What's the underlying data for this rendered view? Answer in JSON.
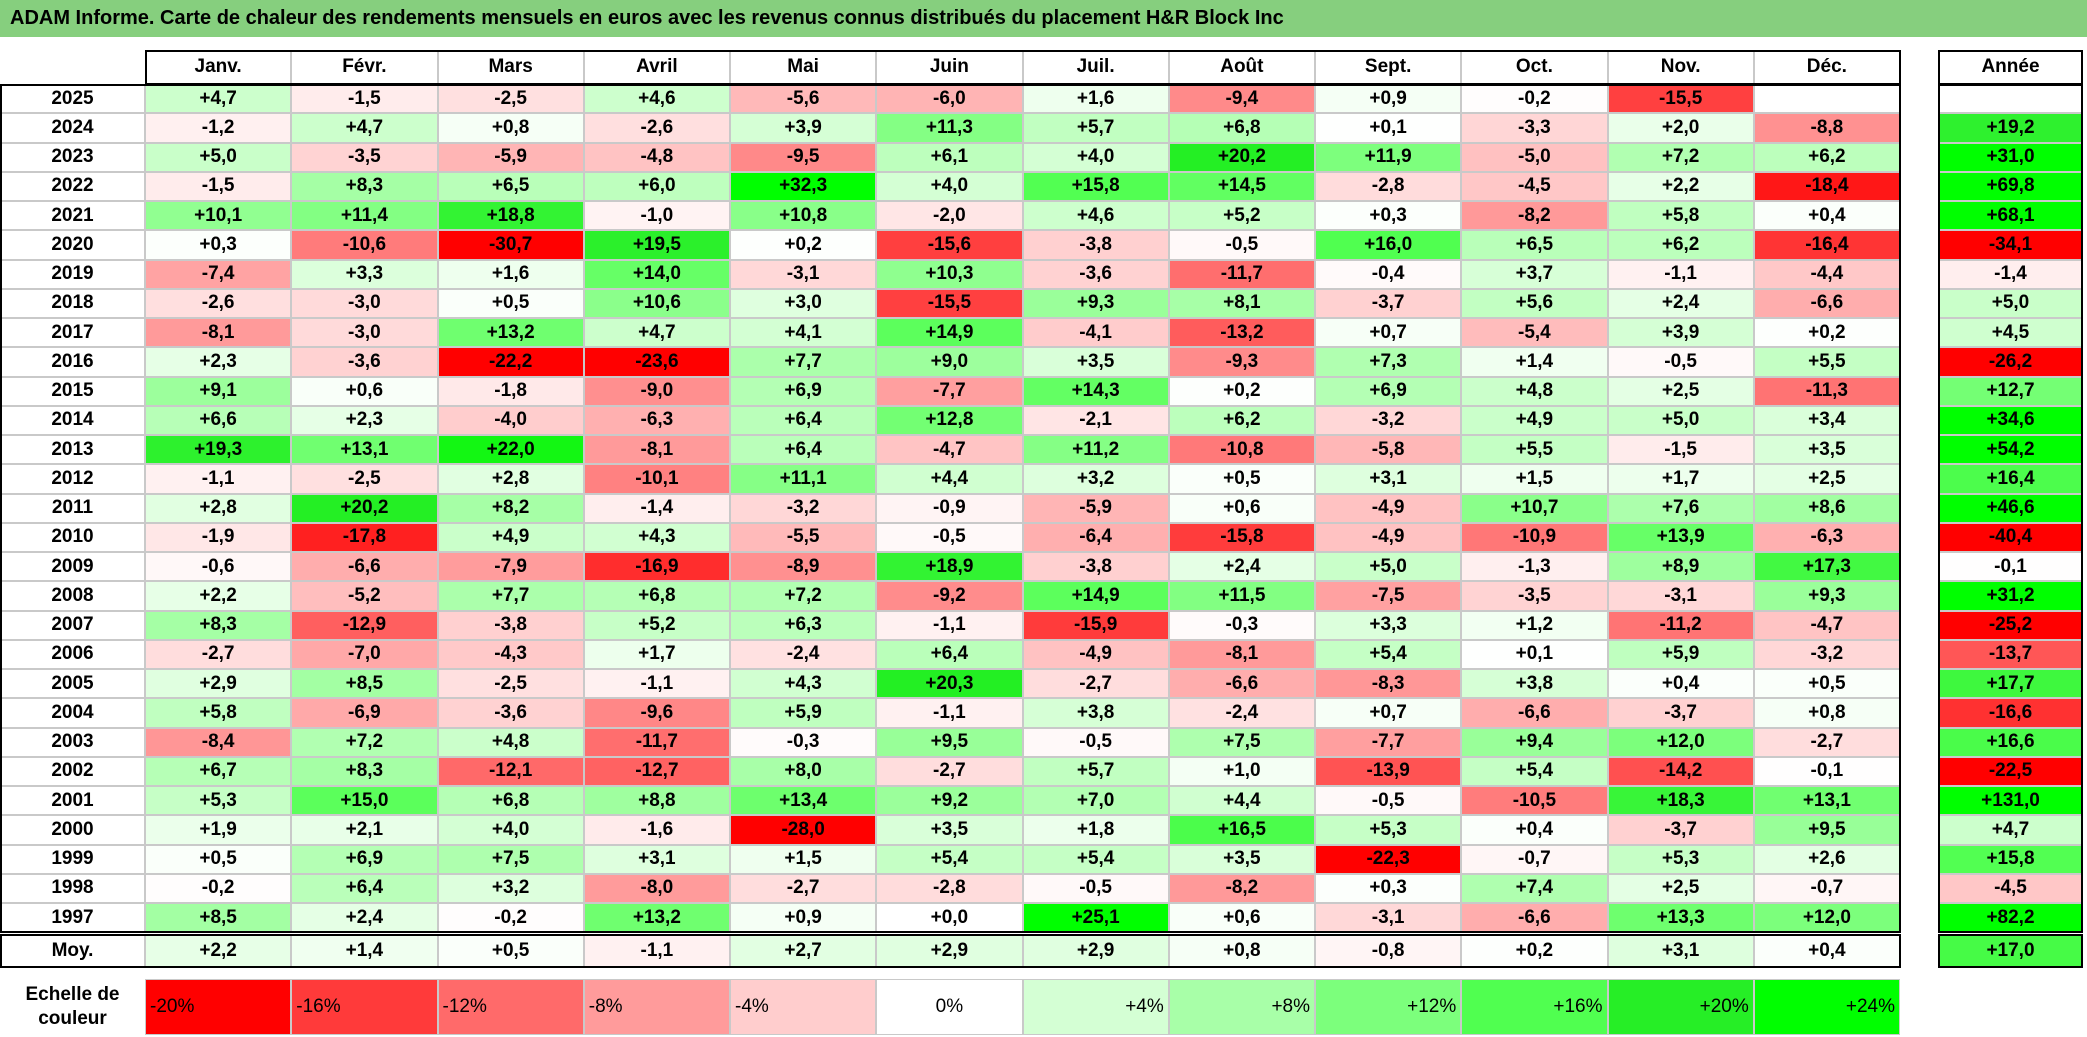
{
  "chart_data": {
    "type": "heatmap",
    "title": "ADAM Informe. Carte de chaleur des rendements mensuels en euros avec les revenus connus distribués du placement H&R Block Inc",
    "columns": [
      "Janv.",
      "Févr.",
      "Mars",
      "Avril",
      "Mai",
      "Juin",
      "Juil.",
      "Août",
      "Sept.",
      "Oct.",
      "Nov.",
      "Déc."
    ],
    "year_column": "Année",
    "rows": [
      "2025",
      "2024",
      "2023",
      "2022",
      "2021",
      "2020",
      "2019",
      "2018",
      "2017",
      "2016",
      "2015",
      "2014",
      "2013",
      "2012",
      "2011",
      "2010",
      "2009",
      "2008",
      "2007",
      "2006",
      "2005",
      "2004",
      "2003",
      "2002",
      "2001",
      "2000",
      "1999",
      "1998",
      "1997"
    ],
    "values": [
      [
        4.7,
        -1.5,
        -2.5,
        4.6,
        -5.6,
        -6.0,
        1.6,
        -9.4,
        0.9,
        -0.2,
        -15.5,
        null
      ],
      [
        -1.2,
        4.7,
        0.8,
        -2.6,
        3.9,
        11.3,
        5.7,
        6.8,
        0.1,
        -3.3,
        2.0,
        -8.8
      ],
      [
        5.0,
        -3.5,
        -5.9,
        -4.8,
        -9.5,
        6.1,
        4.0,
        20.2,
        11.9,
        -5.0,
        7.2,
        6.2
      ],
      [
        -1.5,
        8.3,
        6.5,
        6.0,
        32.3,
        4.0,
        15.8,
        14.5,
        -2.8,
        -4.5,
        2.2,
        -18.4
      ],
      [
        10.1,
        11.4,
        18.8,
        -1.0,
        10.8,
        -2.0,
        4.6,
        5.2,
        0.3,
        -8.2,
        5.8,
        0.4
      ],
      [
        0.3,
        -10.6,
        -30.7,
        19.5,
        0.2,
        -15.6,
        -3.8,
        -0.5,
        16.0,
        6.5,
        6.2,
        -16.4
      ],
      [
        -7.4,
        3.3,
        1.6,
        14.0,
        -3.1,
        10.3,
        -3.6,
        -11.7,
        -0.4,
        3.7,
        -1.1,
        -4.4
      ],
      [
        -2.6,
        -3.0,
        0.5,
        10.6,
        3.0,
        -15.5,
        9.3,
        8.1,
        -3.7,
        5.6,
        2.4,
        -6.6
      ],
      [
        -8.1,
        -3.0,
        13.2,
        4.7,
        4.1,
        14.9,
        -4.1,
        -13.2,
        0.7,
        -5.4,
        3.9,
        0.2
      ],
      [
        2.3,
        -3.6,
        -22.2,
        -23.6,
        7.7,
        9.0,
        3.5,
        -9.3,
        7.3,
        1.4,
        -0.5,
        5.5
      ],
      [
        9.1,
        0.6,
        -1.8,
        -9.0,
        6.9,
        -7.7,
        14.3,
        0.2,
        6.9,
        4.8,
        2.5,
        -11.3
      ],
      [
        6.6,
        2.3,
        -4.0,
        -6.3,
        6.4,
        12.8,
        -2.1,
        6.2,
        -3.2,
        4.9,
        5.0,
        3.4
      ],
      [
        19.3,
        13.1,
        22.0,
        -8.1,
        6.4,
        -4.7,
        11.2,
        -10.8,
        -5.8,
        5.5,
        -1.5,
        3.5
      ],
      [
        -1.1,
        -2.5,
        2.8,
        -10.1,
        11.1,
        4.4,
        3.2,
        0.5,
        3.1,
        1.5,
        1.7,
        2.5
      ],
      [
        2.8,
        20.2,
        8.2,
        -1.4,
        -3.2,
        -0.9,
        -5.9,
        0.6,
        -4.9,
        10.7,
        7.6,
        8.6
      ],
      [
        -1.9,
        -17.8,
        4.9,
        4.3,
        -5.5,
        -0.5,
        -6.4,
        -15.8,
        -4.9,
        -10.9,
        13.9,
        -6.3
      ],
      [
        -0.6,
        -6.6,
        -7.9,
        -16.9,
        -8.9,
        18.9,
        -3.8,
        2.4,
        5.0,
        -1.3,
        8.9,
        17.3
      ],
      [
        2.2,
        -5.2,
        7.7,
        6.8,
        7.2,
        -9.2,
        14.9,
        11.5,
        -7.5,
        -3.5,
        -3.1,
        9.3
      ],
      [
        8.3,
        -12.9,
        -3.8,
        5.2,
        6.3,
        -1.1,
        -15.9,
        -0.3,
        3.3,
        1.2,
        -11.2,
        -4.7
      ],
      [
        -2.7,
        -7.0,
        -4.3,
        1.7,
        -2.4,
        6.4,
        -4.9,
        -8.1,
        5.4,
        0.1,
        5.9,
        -3.2
      ],
      [
        2.9,
        8.5,
        -2.5,
        -1.1,
        4.3,
        20.3,
        -2.7,
        -6.6,
        -8.3,
        3.8,
        0.4,
        0.5
      ],
      [
        5.8,
        -6.9,
        -3.6,
        -9.6,
        5.9,
        -1.1,
        3.8,
        -2.4,
        0.7,
        -6.6,
        -3.7,
        0.8
      ],
      [
        -8.4,
        7.2,
        4.8,
        -11.7,
        -0.3,
        9.5,
        -0.5,
        7.5,
        -7.7,
        9.4,
        12.0,
        -2.7
      ],
      [
        6.7,
        8.3,
        -12.1,
        -12.7,
        8.0,
        -2.7,
        5.7,
        1.0,
        -13.9,
        5.4,
        -14.2,
        -0.1
      ],
      [
        5.3,
        15.0,
        6.8,
        8.8,
        13.4,
        9.2,
        7.0,
        4.4,
        -0.5,
        -10.5,
        18.3,
        13.1
      ],
      [
        1.9,
        2.1,
        4.0,
        -1.6,
        -28.0,
        3.5,
        1.8,
        16.5,
        5.3,
        0.4,
        -3.7,
        9.5
      ],
      [
        0.5,
        6.9,
        7.5,
        3.1,
        1.5,
        5.4,
        5.4,
        3.5,
        -22.3,
        -0.7,
        5.3,
        2.6
      ],
      [
        -0.2,
        6.4,
        3.2,
        -8.0,
        -2.7,
        -2.8,
        -0.5,
        -8.2,
        0.3,
        7.4,
        2.5,
        -0.7
      ],
      [
        8.5,
        2.4,
        -0.2,
        13.2,
        0.9,
        0.0,
        25.1,
        0.6,
        -3.1,
        -6.6,
        13.3,
        12.0
      ]
    ],
    "value_labels": [
      [
        "+4,7",
        "-1,5",
        "-2,5",
        "+4,6",
        "-5,6",
        "-6,0",
        "+1,6",
        "-9,4",
        "+0,9",
        "-0,2",
        "-15,5",
        null
      ],
      [
        "-1,2",
        "+4,7",
        "+0,8",
        "-2,6",
        "+3,9",
        "+11,3",
        "+5,7",
        "+6,8",
        "+0,1",
        "-3,3",
        "+2,0",
        "-8,8"
      ],
      [
        "+5,0",
        "-3,5",
        "-5,9",
        "-4,8",
        "-9,5",
        "+6,1",
        "+4,0",
        "+20,2",
        "+11,9",
        "-5,0",
        "+7,2",
        "+6,2"
      ],
      [
        "-1,5",
        "+8,3",
        "+6,5",
        "+6,0",
        "+32,3",
        "+4,0",
        "+15,8",
        "+14,5",
        "-2,8",
        "-4,5",
        "+2,2",
        "-18,4"
      ],
      [
        "+10,1",
        "+11,4",
        "+18,8",
        "-1,0",
        "+10,8",
        "-2,0",
        "+4,6",
        "+5,2",
        "+0,3",
        "-8,2",
        "+5,8",
        "+0,4"
      ],
      [
        "+0,3",
        "-10,6",
        "-30,7",
        "+19,5",
        "+0,2",
        "-15,6",
        "-3,8",
        "-0,5",
        "+16,0",
        "+6,5",
        "+6,2",
        "-16,4"
      ],
      [
        "-7,4",
        "+3,3",
        "+1,6",
        "+14,0",
        "-3,1",
        "+10,3",
        "-3,6",
        "-11,7",
        "-0,4",
        "+3,7",
        "-1,1",
        "-4,4"
      ],
      [
        "-2,6",
        "-3,0",
        "+0,5",
        "+10,6",
        "+3,0",
        "-15,5",
        "+9,3",
        "+8,1",
        "-3,7",
        "+5,6",
        "+2,4",
        "-6,6"
      ],
      [
        "-8,1",
        "-3,0",
        "+13,2",
        "+4,7",
        "+4,1",
        "+14,9",
        "-4,1",
        "-13,2",
        "+0,7",
        "-5,4",
        "+3,9",
        "+0,2"
      ],
      [
        "+2,3",
        "-3,6",
        "-22,2",
        "-23,6",
        "+7,7",
        "+9,0",
        "+3,5",
        "-9,3",
        "+7,3",
        "+1,4",
        "-0,5",
        "+5,5"
      ],
      [
        "+9,1",
        "+0,6",
        "-1,8",
        "-9,0",
        "+6,9",
        "-7,7",
        "+14,3",
        "+0,2",
        "+6,9",
        "+4,8",
        "+2,5",
        "-11,3"
      ],
      [
        "+6,6",
        "+2,3",
        "-4,0",
        "-6,3",
        "+6,4",
        "+12,8",
        "-2,1",
        "+6,2",
        "-3,2",
        "+4,9",
        "+5,0",
        "+3,4"
      ],
      [
        "+19,3",
        "+13,1",
        "+22,0",
        "-8,1",
        "+6,4",
        "-4,7",
        "+11,2",
        "-10,8",
        "-5,8",
        "+5,5",
        "-1,5",
        "+3,5"
      ],
      [
        "-1,1",
        "-2,5",
        "+2,8",
        "-10,1",
        "+11,1",
        "+4,4",
        "+3,2",
        "+0,5",
        "+3,1",
        "+1,5",
        "+1,7",
        "+2,5"
      ],
      [
        "+2,8",
        "+20,2",
        "+8,2",
        "-1,4",
        "-3,2",
        "-0,9",
        "-5,9",
        "+0,6",
        "-4,9",
        "+10,7",
        "+7,6",
        "+8,6"
      ],
      [
        "-1,9",
        "-17,8",
        "+4,9",
        "+4,3",
        "-5,5",
        "-0,5",
        "-6,4",
        "-15,8",
        "-4,9",
        "-10,9",
        "+13,9",
        "-6,3"
      ],
      [
        "-0,6",
        "-6,6",
        "-7,9",
        "-16,9",
        "-8,9",
        "+18,9",
        "-3,8",
        "+2,4",
        "+5,0",
        "-1,3",
        "+8,9",
        "+17,3"
      ],
      [
        "+2,2",
        "-5,2",
        "+7,7",
        "+6,8",
        "+7,2",
        "-9,2",
        "+14,9",
        "+11,5",
        "-7,5",
        "-3,5",
        "-3,1",
        "+9,3"
      ],
      [
        "+8,3",
        "-12,9",
        "-3,8",
        "+5,2",
        "+6,3",
        "-1,1",
        "-15,9",
        "-0,3",
        "+3,3",
        "+1,2",
        "-11,2",
        "-4,7"
      ],
      [
        "-2,7",
        "-7,0",
        "-4,3",
        "+1,7",
        "-2,4",
        "+6,4",
        "-4,9",
        "-8,1",
        "+5,4",
        "+0,1",
        "+5,9",
        "-3,2"
      ],
      [
        "+2,9",
        "+8,5",
        "-2,5",
        "-1,1",
        "+4,3",
        "+20,3",
        "-2,7",
        "-6,6",
        "-8,3",
        "+3,8",
        "+0,4",
        "+0,5"
      ],
      [
        "+5,8",
        "-6,9",
        "-3,6",
        "-9,6",
        "+5,9",
        "-1,1",
        "+3,8",
        "-2,4",
        "+0,7",
        "-6,6",
        "-3,7",
        "+0,8"
      ],
      [
        "-8,4",
        "+7,2",
        "+4,8",
        "-11,7",
        "-0,3",
        "+9,5",
        "-0,5",
        "+7,5",
        "-7,7",
        "+9,4",
        "+12,0",
        "-2,7"
      ],
      [
        "+6,7",
        "+8,3",
        "-12,1",
        "-12,7",
        "+8,0",
        "-2,7",
        "+5,7",
        "+1,0",
        "-13,9",
        "+5,4",
        "-14,2",
        "-0,1"
      ],
      [
        "+5,3",
        "+15,0",
        "+6,8",
        "+8,8",
        "+13,4",
        "+9,2",
        "+7,0",
        "+4,4",
        "-0,5",
        "-10,5",
        "+18,3",
        "+13,1"
      ],
      [
        "+1,9",
        "+2,1",
        "+4,0",
        "-1,6",
        "-28,0",
        "+3,5",
        "+1,8",
        "+16,5",
        "+5,3",
        "+0,4",
        "-3,7",
        "+9,5"
      ],
      [
        "+0,5",
        "+6,9",
        "+7,5",
        "+3,1",
        "+1,5",
        "+5,4",
        "+5,4",
        "+3,5",
        "-22,3",
        "-0,7",
        "+5,3",
        "+2,6"
      ],
      [
        "-0,2",
        "+6,4",
        "+3,2",
        "-8,0",
        "-2,7",
        "-2,8",
        "-0,5",
        "-8,2",
        "+0,3",
        "+7,4",
        "+2,5",
        "-0,7"
      ],
      [
        "+8,5",
        "+2,4",
        "-0,2",
        "+13,2",
        "+0,9",
        "+0,0",
        "+25,1",
        "+0,6",
        "-3,1",
        "-6,6",
        "+13,3",
        "+12,0"
      ]
    ],
    "year_values": [
      null,
      19.2,
      31.0,
      69.8,
      68.1,
      -34.1,
      -1.4,
      5.0,
      4.5,
      -26.2,
      12.7,
      34.6,
      54.2,
      16.4,
      46.6,
      -40.4,
      -0.1,
      31.2,
      -25.2,
      -13.7,
      17.7,
      -16.6,
      16.6,
      -22.5,
      131.0,
      4.7,
      15.8,
      -4.5,
      82.2
    ],
    "year_labels": [
      null,
      "+19,2",
      "+31,0",
      "+69,8",
      "+68,1",
      "-34,1",
      "-1,4",
      "+5,0",
      "+4,5",
      "-26,2",
      "+12,7",
      "+34,6",
      "+54,2",
      "+16,4",
      "+46,6",
      "-40,4",
      "-0,1",
      "+31,2",
      "-25,2",
      "-13,7",
      "+17,7",
      "-16,6",
      "+16,6",
      "-22,5",
      "+131,0",
      "+4,7",
      "+15,8",
      "-4,5",
      "+82,2"
    ],
    "average_label": "Moy.",
    "average_values": [
      2.2,
      1.4,
      0.5,
      -1.1,
      2.7,
      2.9,
      2.9,
      0.8,
      -0.8,
      0.2,
      3.1,
      0.4
    ],
    "average_labels": [
      "+2,2",
      "+1,4",
      "+0,5",
      "-1,1",
      "+2,7",
      "+2,9",
      "+2,9",
      "+0,8",
      "-0,8",
      "+0,2",
      "+3,1",
      "+0,4"
    ],
    "average_year_value": 17.0,
    "average_year_label": "+17,0",
    "color_scale_title": "Echelle de couleur",
    "color_scale": [
      {
        "value": -20,
        "label": "-20%",
        "color": "#ff0000"
      },
      {
        "value": -16,
        "label": "-16%",
        "color": "#ff3a3a"
      },
      {
        "value": -12,
        "label": "-12%",
        "color": "#ff6a6a"
      },
      {
        "value": -8,
        "label": "-8%",
        "color": "#ff9b9b"
      },
      {
        "value": -4,
        "label": "-4%",
        "color": "#ffcdcd"
      },
      {
        "value": 0,
        "label": "0%",
        "color": "#ffffff"
      },
      {
        "value": 4,
        "label": "+4%",
        "color": "#d4ffd4"
      },
      {
        "value": 8,
        "label": "+8%",
        "color": "#a8ffa8"
      },
      {
        "value": 12,
        "label": "+12%",
        "color": "#7cff7c"
      },
      {
        "value": 16,
        "label": "+16%",
        "color": "#50ff50"
      },
      {
        "value": 20,
        "label": "+20%",
        "color": "#26ee26"
      },
      {
        "value": 24,
        "label": "+24%",
        "color": "#00ff00"
      }
    ]
  }
}
